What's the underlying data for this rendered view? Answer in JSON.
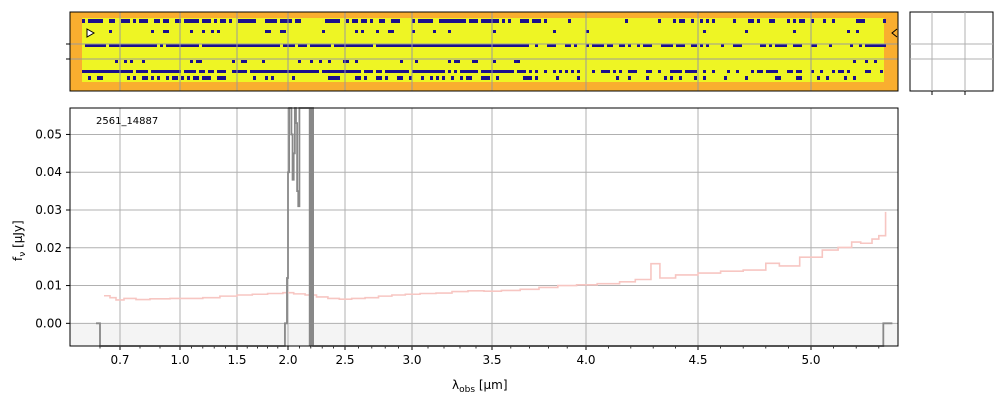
{
  "chart_data": {
    "type": "line",
    "annotation": "2561_14887",
    "xlabel_main": "λ",
    "xlabel_sub": "obs",
    "xlabel_unit": " [μm]",
    "ylabel_main": "f",
    "ylabel_sub": "ν",
    "ylabel_unit": " [μJy]",
    "x_ticks": [
      {
        "value": 0.7,
        "label": "0.7"
      },
      {
        "value": 1.0,
        "label": "1.0"
      },
      {
        "value": 1.5,
        "label": "1.5"
      },
      {
        "value": 2.0,
        "label": "2.0"
      },
      {
        "value": 2.5,
        "label": "2.5"
      },
      {
        "value": 3.0,
        "label": "3.0"
      },
      {
        "value": 3.5,
        "label": "3.5"
      },
      {
        "value": 4.0,
        "label": "4.0"
      },
      {
        "value": 4.5,
        "label": "4.5"
      },
      {
        "value": 5.0,
        "label": "5.0"
      }
    ],
    "y_ticks": [
      {
        "value": 0.0,
        "label": "0.00"
      },
      {
        "value": 0.01,
        "label": "0.01"
      },
      {
        "value": 0.02,
        "label": "0.02"
      },
      {
        "value": 0.03,
        "label": "0.03"
      },
      {
        "value": 0.04,
        "label": "0.04"
      },
      {
        "value": 0.05,
        "label": "0.05"
      }
    ],
    "ylim": [
      -0.006,
      0.057
    ],
    "grid": true,
    "colors": {
      "model": "#f7c6c2",
      "data": "#888888",
      "spectrum_bg": "#f9ae2f",
      "spectrum_fg": "#eef524",
      "spectrum_dark": "#1c0f8c"
    },
    "series": [
      {
        "role": "model",
        "points": [
          [
            0.62,
            0.0073
          ],
          [
            0.65,
            0.0068
          ],
          [
            0.68,
            0.0062
          ],
          [
            0.72,
            0.0066
          ],
          [
            0.78,
            0.0063
          ],
          [
            0.85,
            0.0065
          ],
          [
            0.95,
            0.0066
          ],
          [
            1.05,
            0.0066
          ],
          [
            1.2,
            0.0068
          ],
          [
            1.35,
            0.0072
          ],
          [
            1.5,
            0.0075
          ],
          [
            1.65,
            0.0077
          ],
          [
            1.8,
            0.0079
          ],
          [
            1.95,
            0.0081
          ],
          [
            2.05,
            0.0078
          ],
          [
            2.15,
            0.0075
          ],
          [
            2.25,
            0.007
          ],
          [
            2.35,
            0.0066
          ],
          [
            2.45,
            0.0064
          ],
          [
            2.55,
            0.0066
          ],
          [
            2.65,
            0.0068
          ],
          [
            2.75,
            0.0072
          ],
          [
            2.85,
            0.0075
          ],
          [
            2.95,
            0.0077
          ],
          [
            3.05,
            0.0079
          ],
          [
            3.15,
            0.008
          ],
          [
            3.25,
            0.0084
          ],
          [
            3.35,
            0.0086
          ],
          [
            3.45,
            0.0085
          ],
          [
            3.55,
            0.0087
          ],
          [
            3.65,
            0.009
          ],
          [
            3.75,
            0.0095
          ],
          [
            3.85,
            0.01
          ],
          [
            3.95,
            0.0102
          ],
          [
            4.05,
            0.0105
          ],
          [
            4.15,
            0.011
          ],
          [
            4.22,
            0.0116
          ],
          [
            4.29,
            0.0158
          ],
          [
            4.33,
            0.012
          ],
          [
            4.4,
            0.0128
          ],
          [
            4.5,
            0.0133
          ],
          [
            4.6,
            0.0138
          ],
          [
            4.7,
            0.0141
          ],
          [
            4.8,
            0.0159
          ],
          [
            4.86,
            0.0152
          ],
          [
            4.95,
            0.0175
          ],
          [
            5.05,
            0.0194
          ],
          [
            5.12,
            0.0201
          ],
          [
            5.18,
            0.0215
          ],
          [
            5.22,
            0.0212
          ],
          [
            5.27,
            0.0223
          ],
          [
            5.3,
            0.0232
          ],
          [
            5.33,
            0.0295
          ]
        ]
      },
      {
        "role": "data",
        "points": [
          [
            0.58,
            0.0
          ],
          [
            0.6,
            0.0
          ],
          [
            0.6,
            -0.006
          ],
          [
            1.97,
            -0.006
          ],
          [
            1.97,
            0.0
          ],
          [
            1.98,
            0.0
          ],
          [
            1.99,
            0.012
          ],
          [
            2.0,
            0.04
          ],
          [
            2.01,
            0.057
          ],
          [
            2.02,
            0.057
          ],
          [
            2.03,
            0.05
          ],
          [
            2.04,
            0.038
          ],
          [
            2.05,
            0.045
          ],
          [
            2.06,
            0.057
          ],
          [
            2.07,
            0.053
          ],
          [
            2.08,
            0.035
          ],
          [
            2.09,
            0.031
          ],
          [
            2.1,
            0.057
          ],
          [
            2.12,
            0.057
          ],
          [
            2.2,
            0.057
          ],
          [
            2.22,
            -0.006
          ],
          [
            2.24,
            -0.006
          ],
          [
            5.32,
            -0.006
          ],
          [
            5.32,
            0.0
          ],
          [
            5.36,
            0.0
          ]
        ]
      }
    ]
  }
}
